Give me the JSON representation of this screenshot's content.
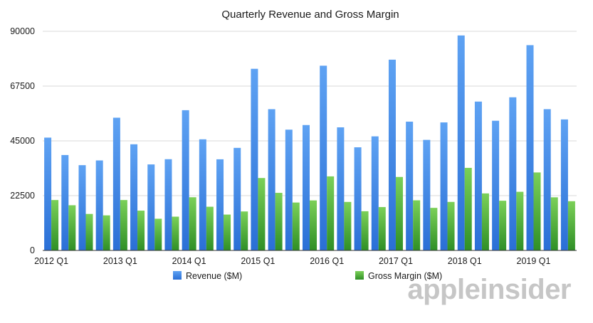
{
  "chart_data": {
    "type": "bar",
    "title": "Quarterly Revenue and Gross Margin",
    "xlabel": "",
    "ylabel": "",
    "ylim": [
      0,
      90000
    ],
    "yticks": [
      "0",
      "22500",
      "45000",
      "67500",
      "90000"
    ],
    "ytick_values": [
      0,
      22500,
      45000,
      67500,
      90000
    ],
    "grid": true,
    "legend_position": "bottom",
    "categories": [
      "2012 Q1",
      "2012 Q2",
      "2012 Q3",
      "2012 Q4",
      "2013 Q1",
      "2013 Q2",
      "2013 Q3",
      "2013 Q4",
      "2014 Q1",
      "2014 Q2",
      "2014 Q3",
      "2014 Q4",
      "2015 Q1",
      "2015 Q2",
      "2015 Q3",
      "2015 Q4",
      "2016 Q1",
      "2016 Q2",
      "2016 Q3",
      "2016 Q4",
      "2017 Q1",
      "2017 Q2",
      "2017 Q3",
      "2017 Q4",
      "2018 Q1",
      "2018 Q2",
      "2018 Q3",
      "2018 Q4",
      "2019 Q1",
      "2019 Q2",
      "2019 Q3"
    ],
    "x_tick_labels": [
      "2012 Q1",
      "2013 Q1",
      "2014 Q1",
      "2015 Q1",
      "2016 Q1",
      "2017 Q1",
      "2018 Q1",
      "2019 Q1"
    ],
    "series": [
      {
        "name": "Revenue ($M)",
        "color": "#3f86e8",
        "values": [
          46333,
          39186,
          35023,
          36966,
          54512,
          43603,
          35323,
          37472,
          57594,
          45646,
          37432,
          42123,
          74599,
          58010,
          49605,
          51501,
          75872,
          50557,
          42358,
          46852,
          78351,
          52896,
          45408,
          52579,
          88293,
          61137,
          53265,
          62900,
          84310,
          58015,
          53809
        ]
      },
      {
        "name": "Gross Margin ($M)",
        "color": "#52b13a",
        "values": [
          20703,
          18564,
          14994,
          14401,
          20703,
          16349,
          13024,
          13871,
          21846,
          17947,
          14735,
          16009,
          29741,
          23656,
          19681,
          20548,
          30423,
          19921,
          16106,
          17813,
          30176,
          20591,
          17488,
          19931,
          33912,
          23422,
          20421,
          24084,
          32031,
          21821,
          20227
        ]
      }
    ]
  },
  "watermark": "appleinsider"
}
